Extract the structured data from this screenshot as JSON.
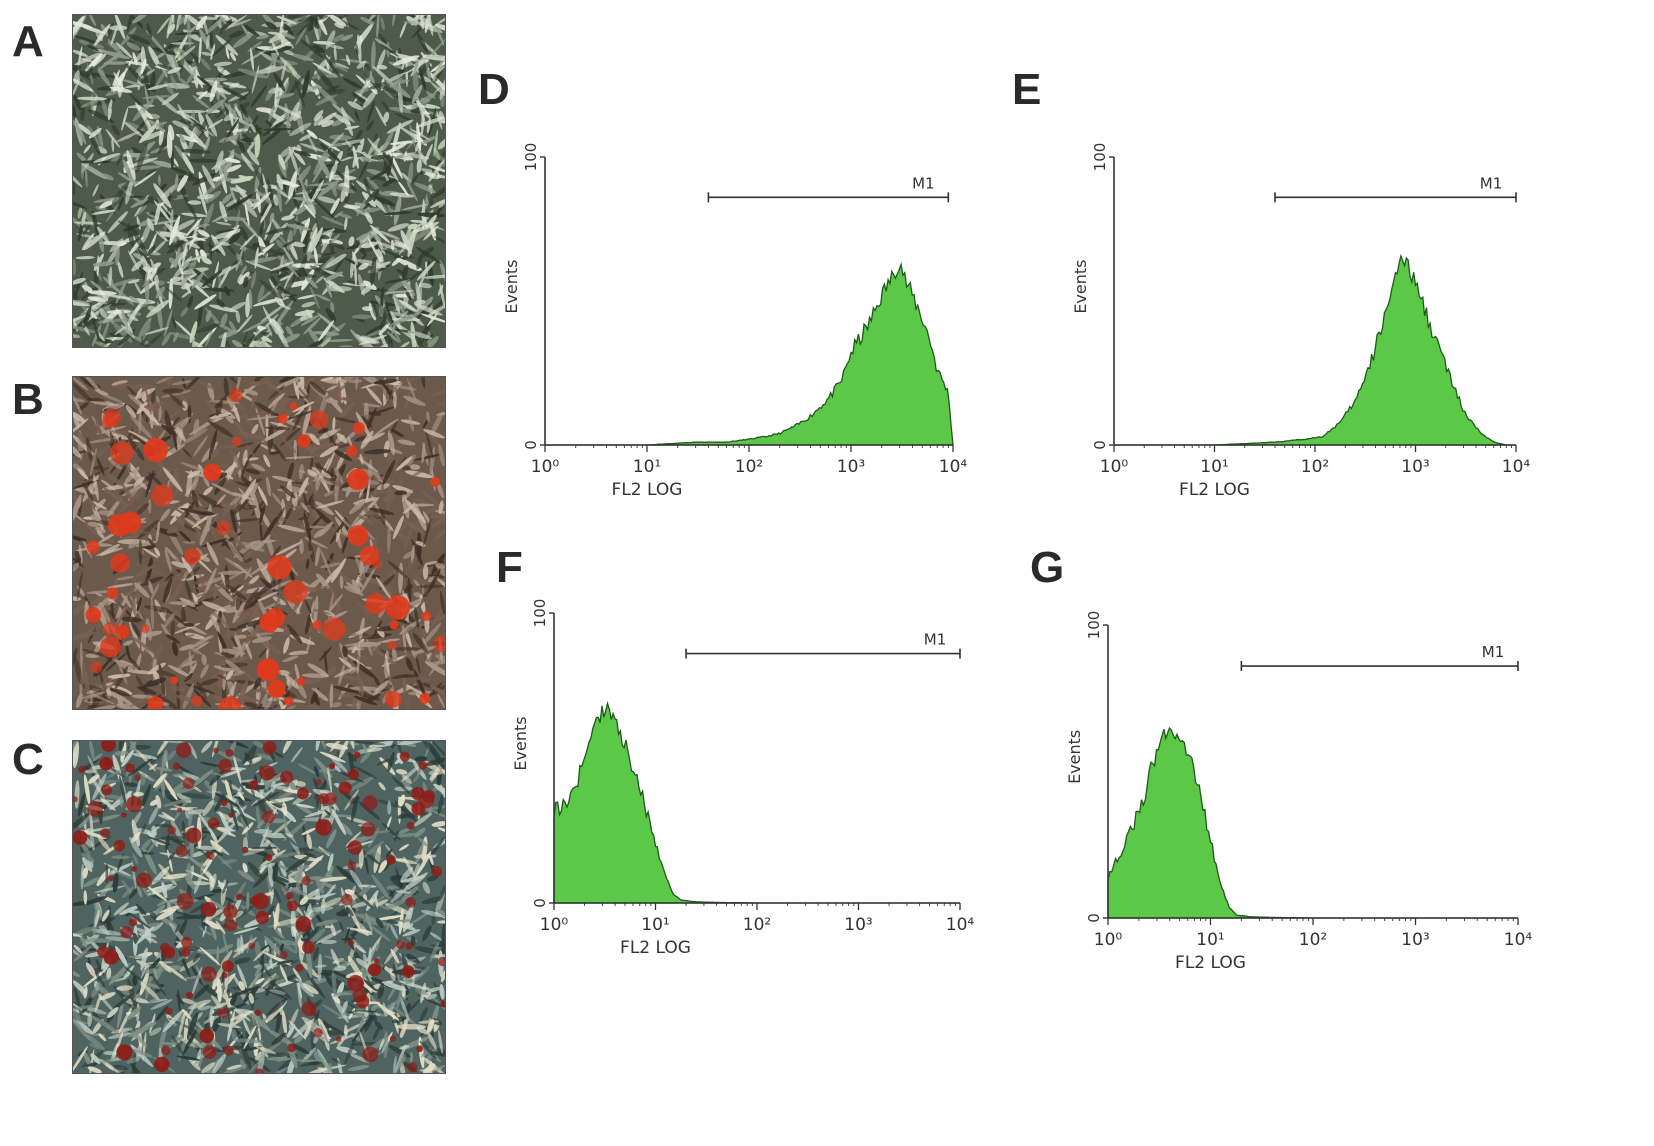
{
  "panels": {
    "A": {
      "label": "A"
    },
    "B": {
      "label": "B"
    },
    "C": {
      "label": "C"
    }
  },
  "colors": {
    "histogram_fill": "#5bc847",
    "histogram_stroke": "#1f5a1a",
    "axis": "#333333",
    "photo_A_base": "#4e5a4a",
    "photo_B_base": "#6b5a4c",
    "photo_B_stain": "#e03a1c",
    "photo_C_base": "#4f6460",
    "photo_C_stain": "#8e1d18"
  },
  "chart_data": [
    {
      "panel": "D",
      "type": "area",
      "x_scale": "log",
      "xlim": [
        1,
        10000
      ],
      "ylim": [
        0,
        100
      ],
      "ylabel": "Events",
      "xlabel": "FL2 LOG",
      "y_ticks": [
        "0",
        "100"
      ],
      "x_ticks": [
        "10⁰",
        "10¹",
        "10²",
        "10³",
        "10⁴"
      ],
      "marker": {
        "label": "M1",
        "range": [
          40,
          9000
        ]
      },
      "x": [
        1,
        10,
        30,
        60,
        100,
        150,
        200,
        300,
        400,
        600,
        800,
        1000,
        1500,
        2000,
        2500,
        3000,
        3500,
        4000,
        5000,
        6000,
        7000,
        8000,
        9000,
        10000
      ],
      "values": [
        0,
        0,
        1,
        1,
        2,
        3,
        4,
        7,
        10,
        16,
        22,
        32,
        42,
        52,
        58,
        64,
        56,
        52,
        44,
        36,
        26,
        22,
        18,
        0
      ]
    },
    {
      "panel": "E",
      "type": "area",
      "x_scale": "log",
      "xlim": [
        1,
        10000
      ],
      "ylim": [
        0,
        100
      ],
      "ylabel": "Events",
      "xlabel": "FL2 LOG",
      "y_ticks": [
        "0",
        "100"
      ],
      "x_ticks": [
        "10⁰",
        "10¹",
        "10²",
        "10³",
        "10⁴"
      ],
      "marker": {
        "label": "M1",
        "range": [
          40,
          10000
        ]
      },
      "x": [
        1,
        10,
        40,
        80,
        120,
        180,
        250,
        350,
        450,
        550,
        650,
        750,
        900,
        1100,
        1400,
        1800,
        2400,
        3200,
        4500,
        6000,
        8000,
        10000
      ],
      "values": [
        0,
        0,
        1,
        2,
        3,
        8,
        15,
        27,
        40,
        52,
        60,
        64,
        60,
        52,
        42,
        32,
        20,
        10,
        4,
        1,
        0,
        0
      ]
    },
    {
      "panel": "F",
      "type": "area",
      "x_scale": "log",
      "xlim": [
        1,
        10000
      ],
      "ylim": [
        0,
        100
      ],
      "ylabel": "Events",
      "xlabel": "FL2 LOG",
      "y_ticks": [
        "0",
        "100"
      ],
      "x_ticks": [
        "10⁰",
        "10¹",
        "10²",
        "10³",
        "10⁴"
      ],
      "marker": {
        "label": "M1",
        "range": [
          20,
          10000
        ]
      },
      "x": [
        1,
        1.3,
        1.7,
        2.2,
        2.7,
        3.3,
        4,
        5,
        6,
        7.5,
        9,
        11,
        13,
        15,
        18,
        25,
        40,
        100,
        10000
      ],
      "values": [
        32,
        34,
        42,
        54,
        64,
        68,
        62,
        55,
        46,
        36,
        26,
        16,
        8,
        3,
        1,
        0.4,
        0.2,
        0,
        0
      ]
    },
    {
      "panel": "G",
      "type": "area",
      "x_scale": "log",
      "xlim": [
        1,
        10000
      ],
      "ylim": [
        0,
        100
      ],
      "ylabel": "Events",
      "xlabel": "FL2 LOG",
      "y_ticks": [
        "0",
        "100"
      ],
      "x_ticks": [
        "10⁰",
        "10¹",
        "10²",
        "10³",
        "10⁴"
      ],
      "marker": {
        "label": "M1",
        "range": [
          20,
          10000
        ]
      },
      "x": [
        1,
        1.3,
        1.7,
        2.2,
        2.7,
        3.3,
        4,
        5,
        6,
        7.5,
        9,
        11,
        13,
        15,
        18,
        25,
        40,
        100,
        10000
      ],
      "values": [
        14,
        22,
        30,
        40,
        52,
        60,
        66,
        62,
        56,
        46,
        34,
        20,
        10,
        4,
        1,
        0.4,
        0.2,
        0,
        0
      ]
    }
  ]
}
